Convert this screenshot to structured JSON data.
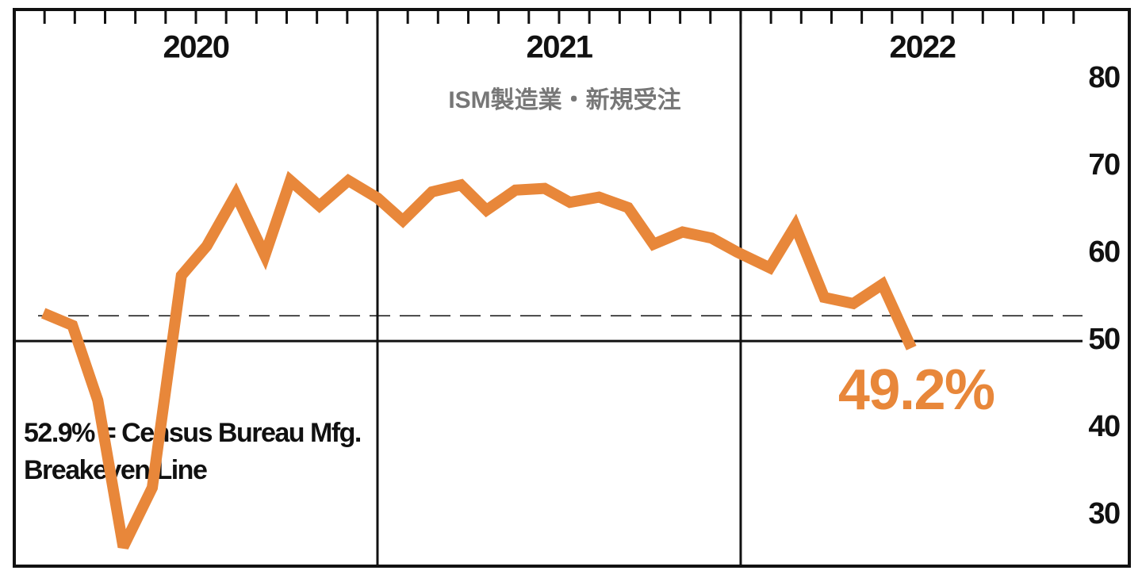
{
  "chart_data": {
    "type": "line",
    "subtitle": "ISM製造業・新規受注",
    "annotation": [
      "52.9% = Census Bureau Mfg.",
      "Breakeven Line"
    ],
    "band_labels": [
      "2020",
      "2021",
      "2022"
    ],
    "x": [
      2020.08,
      2020.16,
      2020.23,
      2020.3,
      2020.38,
      2020.46,
      2020.53,
      2020.61,
      2020.69,
      2020.76,
      2020.84,
      2020.92,
      2021.0,
      2021.07,
      2021.15,
      2021.23,
      2021.3,
      2021.38,
      2021.46,
      2021.53,
      2021.61,
      2021.69,
      2021.76,
      2021.84,
      2021.92,
      2021.99,
      2022.08,
      2022.15,
      2022.23,
      2022.31,
      2022.39,
      2022.47
    ],
    "values": [
      53.2,
      51.8,
      43.2,
      26.4,
      33.2,
      57.5,
      60.9,
      66.8,
      59.8,
      68.4,
      65.5,
      68.4,
      66.4,
      63.8,
      67.1,
      67.9,
      65.0,
      67.3,
      67.5,
      65.9,
      66.5,
      65.3,
      61.1,
      62.5,
      61.8,
      60.2,
      58.4,
      63.2,
      55.0,
      54.3,
      56.5,
      49.2
    ],
    "value_labels": [
      null,
      null,
      null,
      null,
      null,
      null,
      null,
      null,
      null,
      null,
      null,
      null,
      null,
      null,
      null,
      null,
      null,
      null,
      null,
      null,
      null,
      null,
      null,
      null,
      null,
      null,
      null,
      null,
      null,
      null,
      null,
      "49.2%"
    ],
    "color": "#e8873a",
    "xlim": [
      2020,
      2023.07
    ],
    "xgrid": [
      2021,
      2022
    ],
    "ylim": [
      24.2,
      88
    ],
    "yticks": [
      30,
      40,
      50,
      60,
      70,
      80
    ],
    "reference_lines": [
      {
        "value": 50,
        "style": "solid"
      },
      {
        "value": 52.9,
        "style": "dashed"
      }
    ]
  }
}
